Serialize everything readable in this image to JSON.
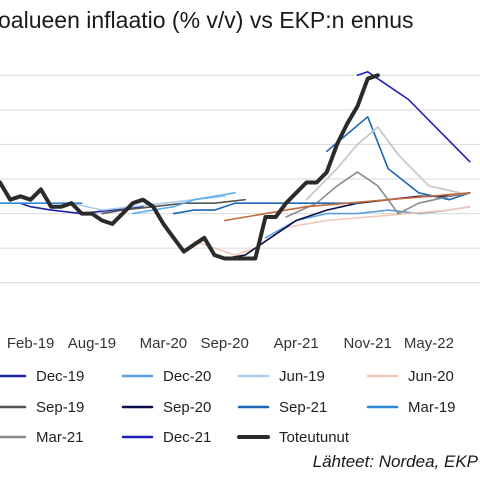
{
  "chart_data": {
    "type": "line",
    "title": "oalueen inflaatio (% v/v) vs EKP:n ennus",
    "source": "Lähteet: Nordea, EKP",
    "x_tick_labels": [
      "Feb-19",
      "Aug-19",
      "Mar-20",
      "Sep-20",
      "Apr-21",
      "Nov-21",
      "May-22"
    ],
    "x_tick_months": [
      1,
      7,
      14,
      20,
      27,
      34,
      40
    ],
    "xlim": [
      -2,
      45
    ],
    "ylim": [
      -1.5,
      5.5
    ],
    "grid": "horizontal",
    "y_gridlines": [
      -1,
      0,
      1,
      2,
      3,
      4,
      5
    ],
    "legend_position": "bottom",
    "series": [
      {
        "name": "Dec-19",
        "color": "#2121a8",
        "width": 1.6,
        "x": [
          0,
          1,
          3,
          6,
          9,
          12
        ],
        "y": [
          1.3,
          1.2,
          1.1,
          1.0,
          1.1,
          1.2
        ]
      },
      {
        "name": "Dec-20",
        "color": "#5aa0e0",
        "width": 1.6,
        "x": [
          24,
          27,
          30,
          33,
          36,
          39,
          42,
          44
        ],
        "y": [
          0.3,
          0.8,
          1.0,
          1.0,
          1.1,
          1.0,
          1.1,
          1.2
        ]
      },
      {
        "name": "Jun-19",
        "color": "#a9cdef",
        "width": 1.6,
        "x": [
          5,
          8,
          11,
          14,
          17,
          20
        ],
        "y": [
          1.3,
          1.1,
          1.2,
          1.3,
          1.4,
          1.5
        ]
      },
      {
        "name": "Jun-20",
        "color": "#f4c7b6",
        "width": 1.6,
        "x": [
          17,
          19,
          21,
          23,
          26,
          30,
          34,
          38,
          42,
          44
        ],
        "y": [
          0.2,
          0.0,
          -0.2,
          0.0,
          0.6,
          0.8,
          0.9,
          1.0,
          1.1,
          1.2
        ]
      },
      {
        "name": "Sep-19",
        "color": "#555555",
        "width": 1.6,
        "x": [
          8,
          10,
          13,
          16,
          19,
          22
        ],
        "y": [
          1.0,
          1.1,
          1.2,
          1.3,
          1.3,
          1.4
        ]
      },
      {
        "name": "Sep-20",
        "color": "#0c0c4a",
        "width": 1.6,
        "x": [
          20,
          22,
          24,
          27,
          30,
          33,
          36,
          39,
          42,
          44
        ],
        "y": [
          -0.3,
          -0.2,
          0.2,
          0.8,
          1.1,
          1.3,
          1.4,
          1.5,
          1.5,
          1.6
        ]
      },
      {
        "name": "Sep-21",
        "color": "#1f66b5",
        "width": 1.6,
        "x": [
          30,
          32,
          34,
          36,
          39,
          42,
          44
        ],
        "y": [
          2.8,
          3.3,
          3.8,
          2.3,
          1.6,
          1.4,
          1.6
        ]
      },
      {
        "name": "Mar-19",
        "color": "#2e86d6",
        "width": 1.6,
        "x": [
          -2,
          0,
          2,
          4,
          6
        ],
        "y": [
          1.3,
          1.3,
          1.3,
          1.3,
          1.3
        ]
      },
      {
        "name": "Mar-21",
        "color": "#8c8c8c",
        "width": 1.6,
        "x": [
          26,
          29,
          31,
          33,
          35,
          37,
          39,
          42,
          44
        ],
        "y": [
          0.9,
          1.3,
          1.8,
          2.2,
          1.8,
          1.0,
          1.3,
          1.5,
          1.6
        ]
      },
      {
        "name": "Dec-21",
        "color": "#2020b8",
        "width": 1.6,
        "x": [
          33,
          34,
          36,
          38,
          41,
          44
        ],
        "y": [
          5.0,
          5.1,
          4.7,
          4.3,
          3.4,
          2.5
        ]
      },
      {
        "name": "",
        "color": "#1f66b5",
        "width": 1.6,
        "x": [
          15,
          17,
          19,
          21,
          23,
          25,
          27,
          30,
          33
        ],
        "y": [
          1.0,
          1.1,
          1.1,
          1.3,
          1.3,
          1.3,
          1.3,
          1.3,
          1.3
        ]
      },
      {
        "name": "",
        "color": "#5ab0e8",
        "width": 1.6,
        "x": [
          11,
          13,
          15,
          17,
          19,
          21
        ],
        "y": [
          1.0,
          1.1,
          1.2,
          1.4,
          1.5,
          1.6
        ]
      },
      {
        "name": "",
        "color": "#c9c9c9",
        "width": 1.8,
        "x": [
          28,
          31,
          33,
          35,
          37,
          40,
          43
        ],
        "y": [
          1.4,
          2.3,
          3.0,
          3.5,
          2.7,
          1.8,
          1.6
        ]
      },
      {
        "name": "",
        "color": "#c26a3c",
        "width": 1.6,
        "x": [
          20,
          24,
          28,
          32,
          36,
          40,
          44
        ],
        "y": [
          0.8,
          1.0,
          1.2,
          1.3,
          1.4,
          1.5,
          1.6
        ]
      },
      {
        "name": "Toteutunut",
        "color": "#2b2b2b",
        "width": 4,
        "x": [
          -2,
          -1,
          0,
          1,
          2,
          3,
          4,
          5,
          6,
          7,
          8,
          9,
          10,
          11,
          12,
          13,
          14,
          15,
          16,
          17,
          18,
          19,
          20,
          21,
          22,
          23,
          24,
          25,
          26,
          27,
          28,
          29,
          30,
          31,
          32,
          33,
          34,
          35
        ],
        "y": [
          1.9,
          1.4,
          1.5,
          1.4,
          1.7,
          1.2,
          1.2,
          1.3,
          1.0,
          1.0,
          0.8,
          0.7,
          1.0,
          1.3,
          1.4,
          1.2,
          0.7,
          0.3,
          -0.1,
          0.1,
          0.3,
          -0.2,
          -0.3,
          -0.3,
          -0.3,
          -0.3,
          0.9,
          0.9,
          1.3,
          1.6,
          1.9,
          1.9,
          2.2,
          3.0,
          3.6,
          4.1,
          4.9,
          5.0
        ]
      }
    ],
    "legend": [
      {
        "name": "Dec-19",
        "color": "#2121a8"
      },
      {
        "name": "Dec-20",
        "color": "#5aa0e0"
      },
      {
        "name": "Jun-19",
        "color": "#a9cdef"
      },
      {
        "name": "Jun-20",
        "color": "#f4c7b6"
      },
      {
        "name": "Sep-19",
        "color": "#555555"
      },
      {
        "name": "Sep-20",
        "color": "#0c0c4a"
      },
      {
        "name": "Sep-21",
        "color": "#1f66b5"
      },
      {
        "name": "Mar-19",
        "color": "#2e86d6"
      },
      {
        "name": "Mar-21",
        "color": "#8c8c8c"
      },
      {
        "name": "Dec-21",
        "color": "#2020b8"
      },
      {
        "name": "Toteutunut",
        "color": "#2b2b2b"
      }
    ]
  }
}
